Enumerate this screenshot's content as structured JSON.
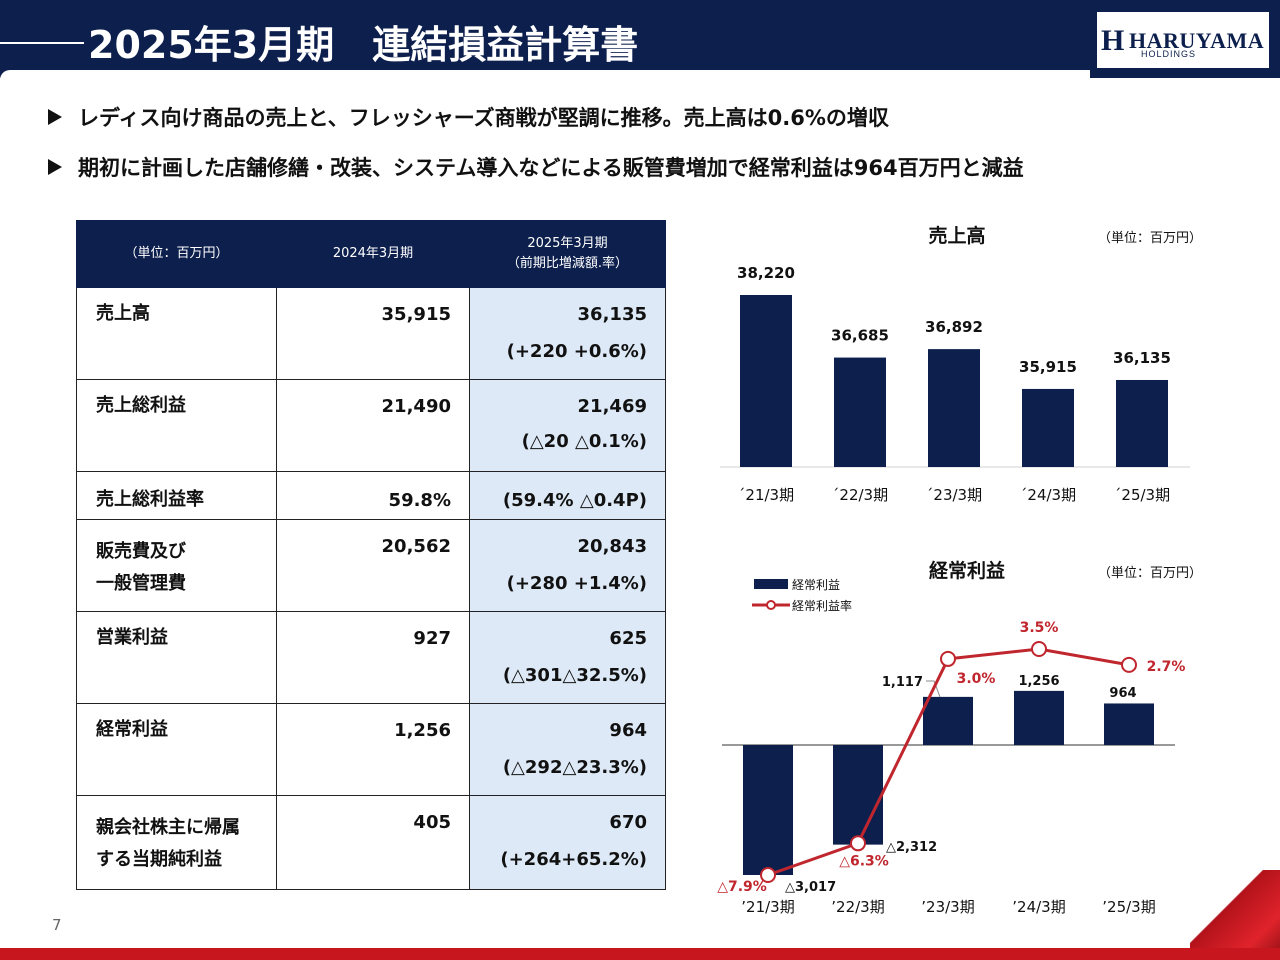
{
  "header": {
    "title": "2025年3月期　連結損益計算書"
  },
  "logo": {
    "name": "HARUYAMA",
    "sub": "HOLDINGS"
  },
  "bullets": [
    "レディス向け商品の売上と、フレッシャーズ商戦が堅調に推移。売上高は0.6%の増収",
    "期初に計画した店舗修繕・改装、システム導入などによる販管費増加で経常利益は964百万円と減益"
  ],
  "table": {
    "headers": {
      "unit": "（単位：百万円）",
      "prev": "2024年3月期",
      "curr_line1": "2025年3月期",
      "curr_line2": "（前期比増減額.率）"
    },
    "rows": [
      {
        "label1": "売上高",
        "label2": "",
        "prev": "35,915",
        "curr": "36,135",
        "change": "(+220 +0.6%)"
      },
      {
        "label1": "売上総利益",
        "label2": "",
        "prev": "21,490",
        "curr": "21,469",
        "change": "(△20 △0.1%)"
      },
      {
        "label1": "売上総利益率",
        "label2": "",
        "prev": "59.8%",
        "curr": "(59.4% △0.4P)",
        "change": ""
      },
      {
        "label1": "販売費及び",
        "label2": "一般管理費",
        "prev": "20,562",
        "curr": "20,843",
        "change": "(+280 +1.4%)"
      },
      {
        "label1": "営業利益",
        "label2": "",
        "prev": "927",
        "curr": "625",
        "change": "(△301△32.5%)"
      },
      {
        "label1": "経常利益",
        "label2": "",
        "prev": "1,256",
        "curr": "964",
        "change": "(△292△23.3%)"
      },
      {
        "label1": "親会社株主に帰属",
        "label2": "する当期純利益",
        "prev": "405",
        "curr": "670",
        "change": "(+264+65.2%)"
      }
    ]
  },
  "page_number": "7",
  "chart_data": [
    {
      "type": "bar",
      "title": "売上高",
      "unit": "（単位：百万円）",
      "categories": [
        "´21/3期",
        "´22/3期",
        "´23/3期",
        "´24/3期",
        "´25/3期"
      ],
      "values": [
        38220,
        36685,
        36892,
        35915,
        36135
      ],
      "value_labels": [
        "38,220",
        "36,685",
        "36,892",
        "35,915",
        "36,135"
      ],
      "ylim": [
        34000,
        39000
      ],
      "bar_color": "#0c1f4d"
    },
    {
      "type": "bar",
      "title": "経常利益",
      "unit": "（単位：百万円）",
      "categories": [
        "’21/3期",
        "’22/3期",
        "’23/3期",
        "’24/3期",
        "’25/3期"
      ],
      "series": [
        {
          "name": "経常利益",
          "type": "bar",
          "color": "#0c1f4d",
          "values": [
            -3017,
            -2312,
            1117,
            1256,
            964
          ],
          "labels": [
            "△3,017",
            "△2,312",
            "1,117",
            "1,256",
            "964"
          ]
        },
        {
          "name": "経常利益率",
          "type": "line",
          "color": "#c0262d",
          "values": [
            -7.9,
            -6.3,
            3.0,
            3.5,
            2.7
          ],
          "labels": [
            "△7.9%",
            "△6.3%",
            "3.0%",
            "3.5%",
            "2.7%"
          ]
        }
      ],
      "ylim_bar": [
        -3200,
        2200
      ],
      "ylim_line": [
        -8.4,
        4.0
      ]
    }
  ]
}
